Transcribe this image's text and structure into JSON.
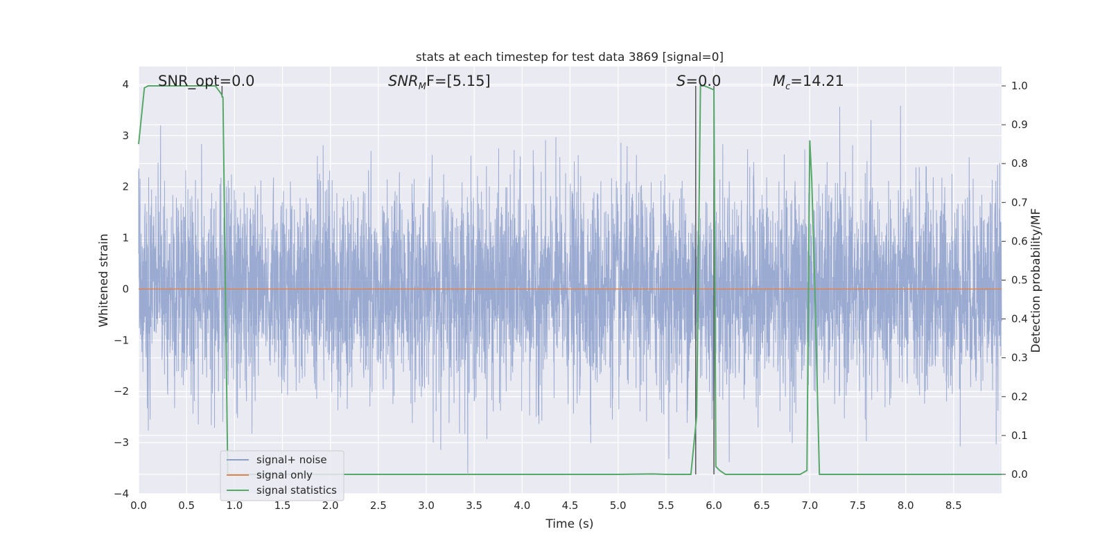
{
  "chart_data": {
    "type": "line",
    "title": "stats at each timestep for test data 3869 [signal=0]",
    "xlabel": "Time (s)",
    "ylabel_left": "Whitened strain",
    "ylabel_right": "Detection probability/MF",
    "xlim": [
      0.0,
      9.0
    ],
    "ylim_left": [
      -4.0,
      4.35
    ],
    "ylim_right": [
      -0.05,
      1.05
    ],
    "x_ticks": [
      "0.0",
      "0.5",
      "1.0",
      "1.5",
      "2.0",
      "2.5",
      "3.0",
      "3.5",
      "4.0",
      "4.5",
      "5.0",
      "5.5",
      "6.0",
      "6.5",
      "7.0",
      "7.5",
      "8.0",
      "8.5"
    ],
    "y_left_ticks": [
      "−4",
      "−3",
      "−2",
      "−1",
      "0",
      "1",
      "2",
      "3",
      "4"
    ],
    "y_right_ticks": [
      "0.0",
      "0.1",
      "0.2",
      "0.3",
      "0.4",
      "0.5",
      "0.6",
      "0.7",
      "0.8",
      "0.9",
      "1.0"
    ],
    "grid": true,
    "background": "#eaeaf2",
    "legend_position": "lower-left",
    "annotations": [
      {
        "text": "SNR_opt=0.0"
      },
      {
        "text_main": "SNR",
        "text_sub": "M",
        "text_tail": "F=[5.15]"
      },
      {
        "text_main": "S",
        "text_tail": "=0.0"
      },
      {
        "text_main": "M",
        "text_sub": "c",
        "text_tail": "=14.21"
      }
    ],
    "series": [
      {
        "name": "signal+ noise",
        "axis": "left",
        "color": "#8c9fcb",
        "description_values": "gaussian whitened noise, sigma≈1, peaks ~±3.5",
        "sigma": 1.0,
        "sample_count": 2400
      },
      {
        "name": "signal only",
        "axis": "left",
        "color": "#dd8452",
        "x": [
          0.0,
          9.0
        ],
        "y": [
          0.0,
          0.0
        ]
      },
      {
        "name": "signal statistics",
        "axis": "right",
        "color": "#55a868",
        "x": [
          0.0,
          0.06,
          0.1,
          0.3,
          0.5,
          0.7,
          0.8,
          0.86,
          0.88,
          0.93,
          1.0,
          2.0,
          3.0,
          4.0,
          5.0,
          5.36,
          5.5,
          5.76,
          5.82,
          5.86,
          5.9,
          6.0,
          6.02,
          6.06,
          6.12,
          6.3,
          6.5,
          6.9,
          6.97,
          7.0,
          7.02,
          7.05,
          7.1,
          7.15,
          7.5,
          8.0,
          8.5,
          9.0
        ],
        "y": [
          0.85,
          0.995,
          1.0,
          1.0,
          1.0,
          1.0,
          1.0,
          0.98,
          0.97,
          0.0,
          0.0,
          0.0,
          0.0,
          0.0,
          0.0,
          0.001,
          0.0,
          0.0,
          0.15,
          1.0,
          1.0,
          0.99,
          0.02,
          0.01,
          0.0,
          0.0,
          0.0,
          0.0,
          0.01,
          0.86,
          0.76,
          0.5,
          0.0,
          0.0,
          0.0,
          0.0,
          0.0,
          0.0
        ]
      }
    ],
    "vertical_lines": [
      {
        "x": 0.87,
        "color": "#555555",
        "ymin": 0.97,
        "ymax": 1.0
      },
      {
        "x": 5.81,
        "color": "#555555",
        "ymin": 0.0,
        "ymax": 1.0
      },
      {
        "x": 6.0,
        "color": "#555555",
        "ymin": 0.0,
        "ymax": 1.0
      }
    ]
  }
}
